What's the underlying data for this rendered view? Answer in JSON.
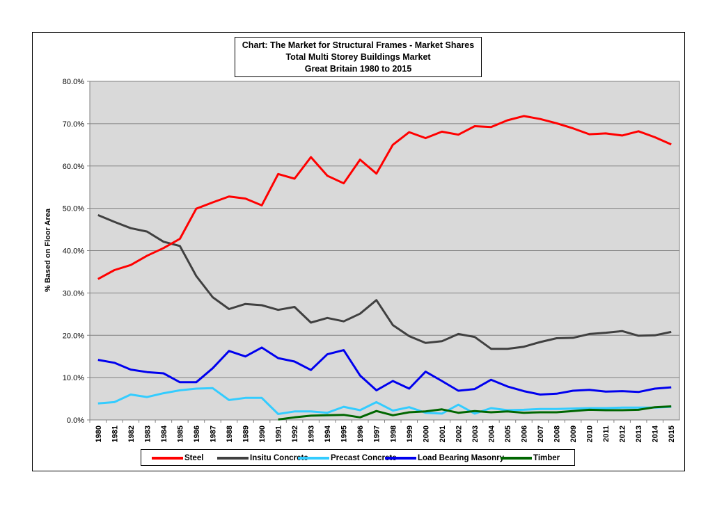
{
  "chart_data": {
    "type": "line",
    "title_lines": [
      "Chart: The Market for Structural Frames - Market Shares",
      "Total Multi Storey Buildings Market",
      "Great Britain 1980 to 2015"
    ],
    "ylabel": "% Based on Floor Area",
    "xlabel": "",
    "ylim": [
      0,
      80
    ],
    "yticks": [
      "0.0%",
      "10.0%",
      "20.0%",
      "30.0%",
      "40.0%",
      "50.0%",
      "60.0%",
      "70.0%",
      "80.0%"
    ],
    "grid": true,
    "legend_position": "bottom",
    "x": [
      "1980",
      "1981",
      "1982",
      "1983",
      "1984",
      "1985",
      "1986",
      "1987",
      "1988",
      "1989",
      "1990",
      "1991",
      "1992",
      "1993",
      "1994",
      "1995",
      "1996",
      "1997",
      "1998",
      "1999",
      "2000",
      "2001",
      "2002",
      "2003",
      "2004",
      "2005",
      "2006",
      "2007",
      "2008",
      "2009",
      "2010",
      "2011",
      "2012",
      "2013",
      "2014",
      "2015"
    ],
    "series": [
      {
        "name": "Steel",
        "color": "#ff0000",
        "values": [
          33.3,
          35.4,
          36.6,
          38.8,
          40.6,
          42.8,
          49.9,
          51.4,
          52.8,
          52.3,
          50.7,
          58.1,
          57.0,
          62.1,
          57.7,
          55.9,
          61.5,
          58.2,
          65.0,
          68.0,
          66.6,
          68.1,
          67.4,
          69.4,
          69.2,
          70.8,
          71.8,
          71.1,
          70.1,
          68.9,
          67.5,
          67.7,
          67.2,
          68.2,
          66.8,
          65.1
        ]
      },
      {
        "name": "Insitu Concrete",
        "color": "#404040",
        "values": [
          48.4,
          46.8,
          45.3,
          44.5,
          42.1,
          41.1,
          34.0,
          29.0,
          26.2,
          27.4,
          27.1,
          26.0,
          26.7,
          23.0,
          24.1,
          23.3,
          25.1,
          28.3,
          22.4,
          19.8,
          18.2,
          18.6,
          20.3,
          19.6,
          16.8,
          16.8,
          17.3,
          18.4,
          19.3,
          19.4,
          20.3,
          20.6,
          21.0,
          19.9,
          20.0,
          20.8
        ]
      },
      {
        "name": "Precast Concrete",
        "color": "#33ccff",
        "values": [
          3.9,
          4.2,
          6.0,
          5.4,
          6.3,
          7.0,
          7.4,
          7.5,
          4.7,
          5.2,
          5.2,
          1.4,
          2.0,
          2.0,
          1.7,
          3.1,
          2.3,
          4.2,
          2.2,
          3.0,
          1.7,
          1.5,
          3.6,
          1.5,
          2.8,
          2.3,
          2.4,
          2.6,
          2.6,
          2.7,
          2.8,
          2.8,
          2.9,
          2.9,
          2.9,
          3.1
        ]
      },
      {
        "name": "Load Bearing Masonry",
        "color": "#0000ee",
        "values": [
          14.2,
          13.5,
          11.9,
          11.3,
          11.0,
          8.9,
          8.9,
          12.2,
          16.3,
          15.0,
          17.1,
          14.6,
          13.8,
          11.8,
          15.5,
          16.5,
          10.5,
          7.0,
          9.2,
          7.4,
          11.4,
          9.2,
          6.9,
          7.3,
          9.5,
          7.9,
          6.8,
          6.0,
          6.2,
          6.9,
          7.1,
          6.7,
          6.8,
          6.6,
          7.4,
          7.7
        ]
      },
      {
        "name": "Timber",
        "color": "#006600",
        "values": [
          null,
          null,
          null,
          null,
          null,
          null,
          null,
          null,
          null,
          null,
          null,
          0.1,
          0.6,
          1.0,
          1.1,
          1.2,
          0.6,
          2.1,
          1.1,
          1.8,
          2.0,
          2.5,
          1.7,
          2.1,
          1.8,
          2.0,
          1.7,
          1.8,
          1.8,
          2.1,
          2.4,
          2.3,
          2.3,
          2.4,
          3.0,
          3.2
        ]
      }
    ]
  }
}
